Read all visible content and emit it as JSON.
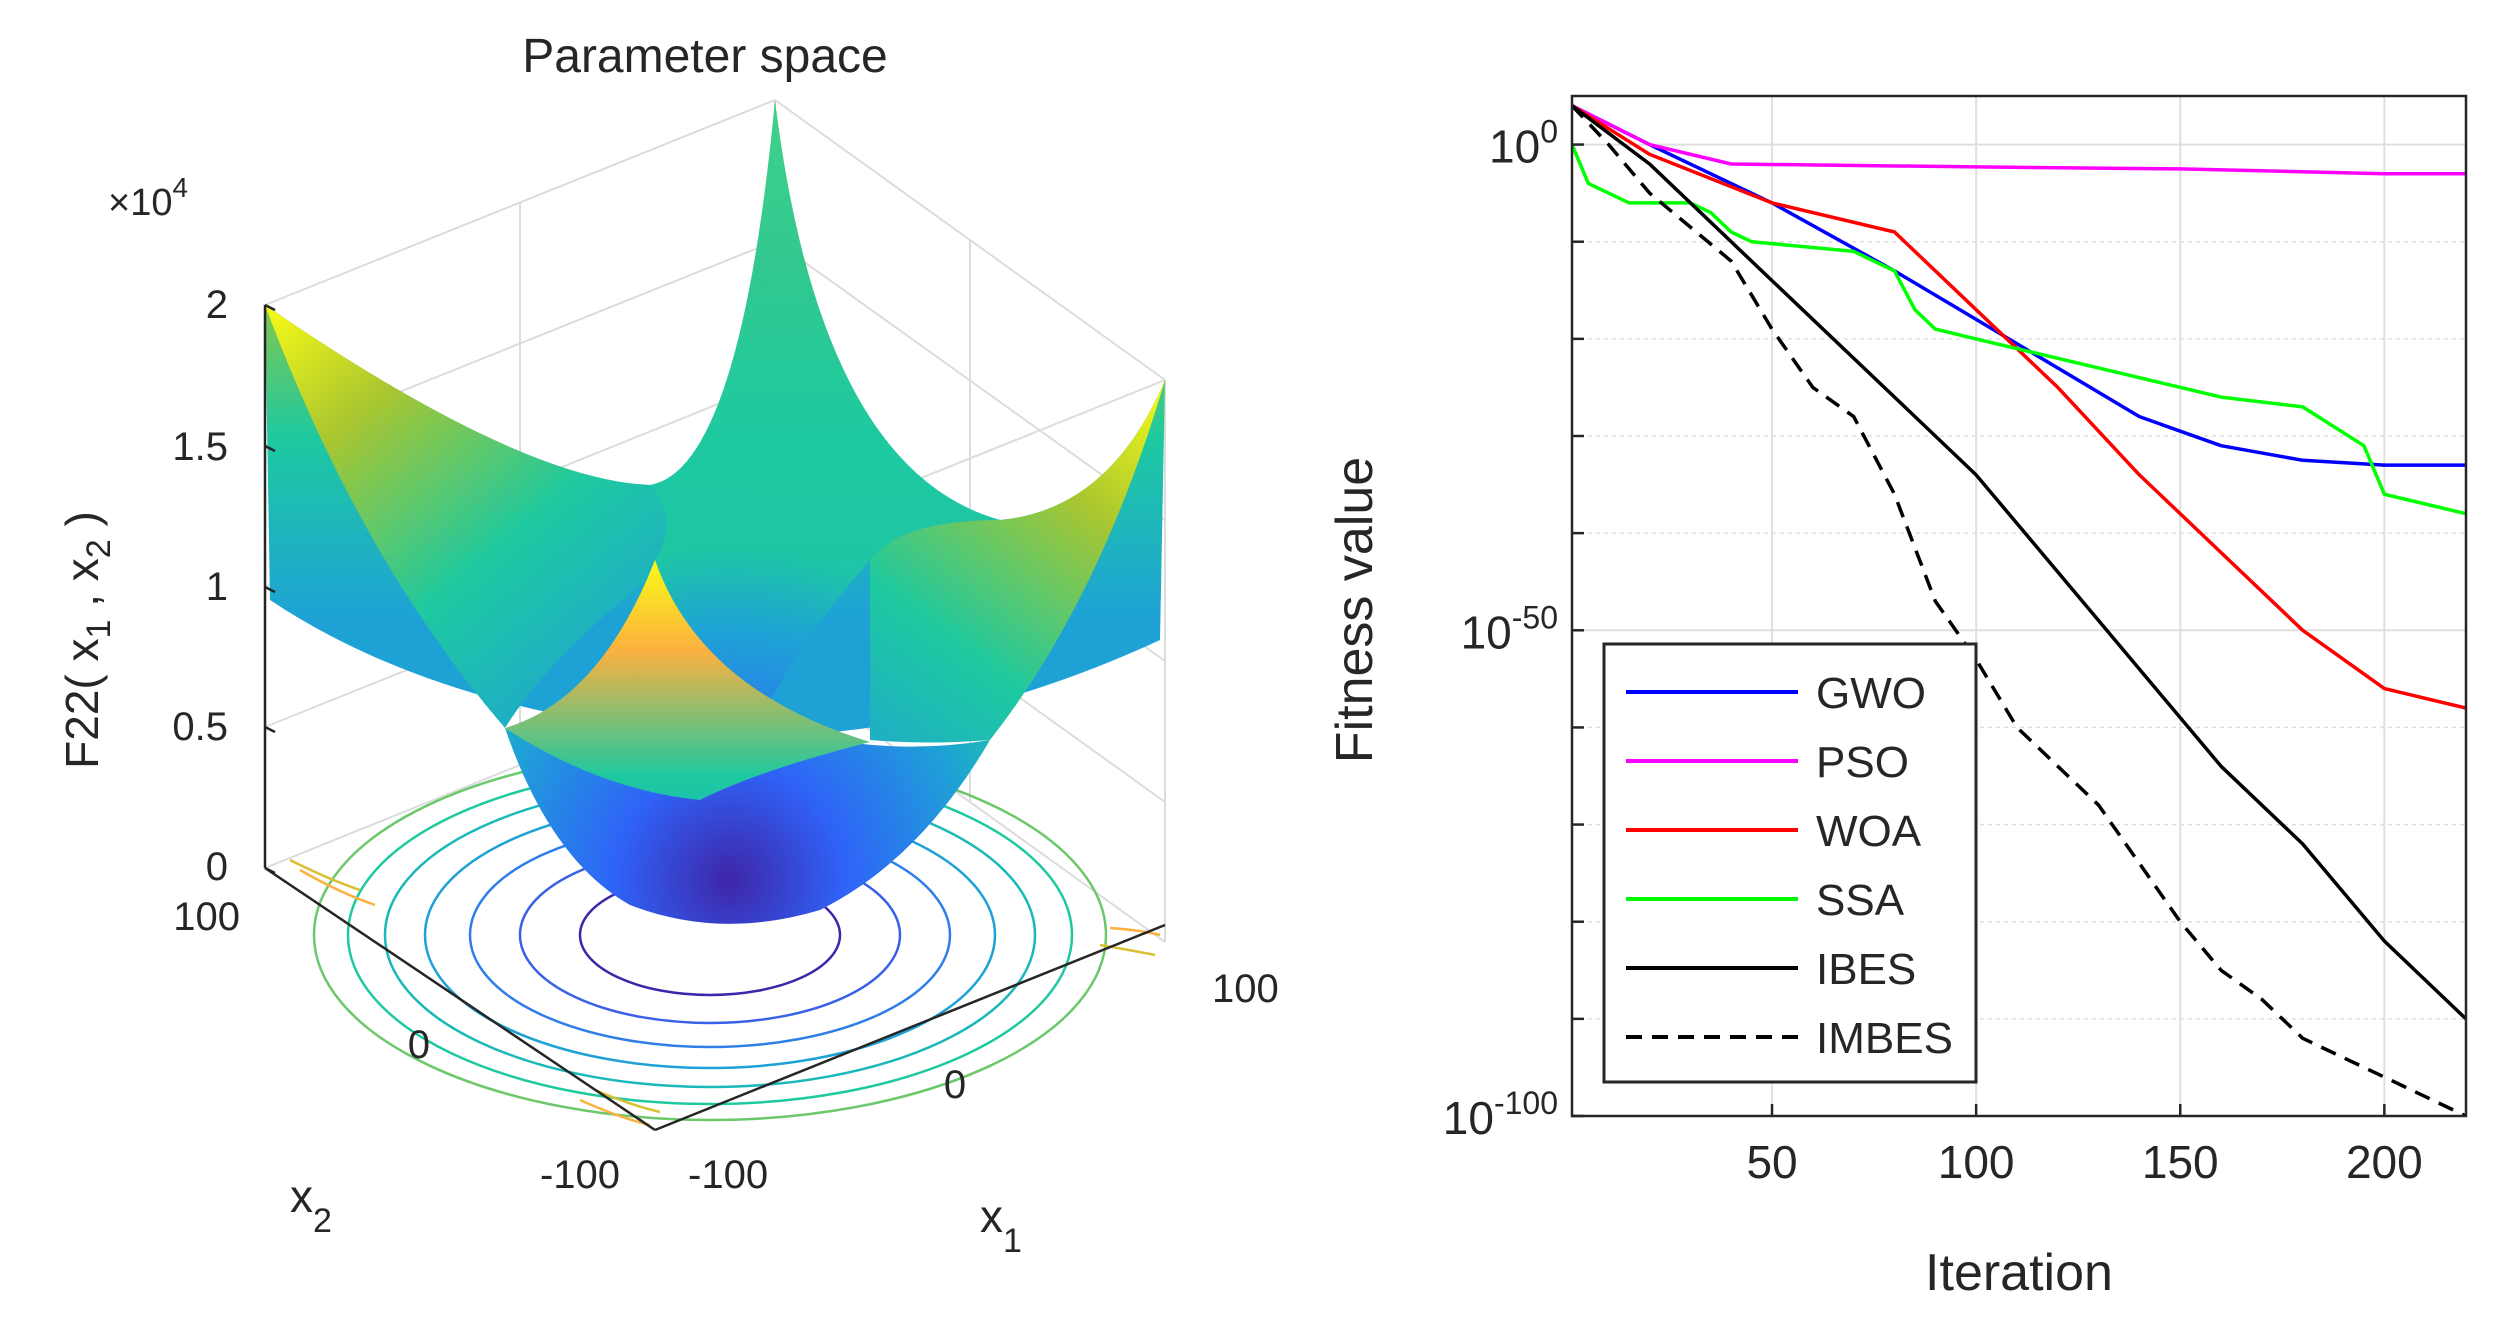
{
  "chart_data": [
    {
      "type": "surface",
      "title": "Parameter space",
      "zlabel_prefix": "F22( x",
      "zlabel_sub1": "1",
      "zlabel_mid": " , x",
      "zlabel_sub2": "2",
      "zlabel_suffix": " )",
      "xlabel": "x",
      "xlabel_sub": "1",
      "ylabel": "x",
      "ylabel_sub": "2",
      "multiplier_prefix": "×10",
      "multiplier_exp": "4",
      "z_ticks": [
        "0",
        "0.5",
        "1",
        "1.5",
        "2"
      ],
      "x_ticks": [
        "-100",
        "0",
        "100"
      ],
      "y_ticks": [
        "-100",
        "0",
        "100"
      ],
      "xlim": [
        -100,
        100
      ],
      "ylim": [
        -100,
        100
      ],
      "zlim": [
        0,
        20000
      ],
      "colormap": [
        "#3e26a8",
        "#2f63f8",
        "#1ea2d6",
        "#1ec9a0",
        "#a9c630",
        "#fcb13f",
        "#f9fb15"
      ]
    },
    {
      "type": "line",
      "y_scale": "log",
      "xlabel": "Iteration",
      "ylabel": "Fitness value",
      "xlim": [
        1,
        220
      ],
      "ylim_exponent": [
        -100,
        5
      ],
      "x_ticks": [
        "50",
        "100",
        "150",
        "200"
      ],
      "x_tick_values": [
        50,
        100,
        150,
        200
      ],
      "y_ticks": [
        {
          "base": "10",
          "exp": "0",
          "value": 0
        },
        {
          "base": "10",
          "exp": "-50",
          "value": -50
        },
        {
          "base": "10",
          "exp": "-100",
          "value": -100
        }
      ],
      "grid": true,
      "legend_position": "lower-left",
      "series": [
        {
          "name": "GWO",
          "color": "#0000ff",
          "dash": "",
          "x": [
            1,
            20,
            50,
            80,
            100,
            120,
            140,
            160,
            180,
            200,
            220
          ],
          "log10_y": [
            4,
            0,
            -6,
            -13,
            -18,
            -23,
            -28,
            -31,
            -32.5,
            -33,
            -33
          ]
        },
        {
          "name": "PSO",
          "color": "#ff00ff",
          "dash": "",
          "x": [
            1,
            20,
            40,
            100,
            150,
            200,
            220
          ],
          "log10_y": [
            4,
            0,
            -2,
            -2.3,
            -2.5,
            -3,
            -3
          ]
        },
        {
          "name": "WOA",
          "color": "#ff0000",
          "dash": "",
          "x": [
            1,
            20,
            50,
            80,
            100,
            120,
            140,
            160,
            180,
            200,
            220
          ],
          "log10_y": [
            4,
            -1,
            -6,
            -9,
            -17,
            -25,
            -34,
            -42,
            -50,
            -56,
            -58
          ]
        },
        {
          "name": "SSA",
          "color": "#00ff00",
          "dash": "",
          "x": [
            1,
            5,
            15,
            30,
            35,
            40,
            45,
            70,
            80,
            85,
            90,
            100,
            120,
            140,
            160,
            180,
            195,
            200,
            210,
            220
          ],
          "log10_y": [
            0,
            -4,
            -6,
            -6,
            -7,
            -9,
            -10,
            -11,
            -13,
            -17,
            -19,
            -20,
            -22,
            -24,
            -26,
            -27,
            -31,
            -36,
            -37,
            -38
          ]
        },
        {
          "name": "IBES",
          "color": "#000000",
          "dash": "",
          "x": [
            1,
            20,
            50,
            80,
            100,
            120,
            140,
            160,
            180,
            200,
            220
          ],
          "log10_y": [
            4,
            -2,
            -14,
            -26,
            -34,
            -44,
            -54,
            -64,
            -72,
            -82,
            -90
          ]
        },
        {
          "name": "IMBES",
          "color": "#000000",
          "dash": "16,10",
          "x": [
            1,
            10,
            20,
            40,
            50,
            60,
            70,
            80,
            90,
            100,
            110,
            120,
            130,
            135,
            140,
            150,
            160,
            170,
            180,
            190,
            200,
            210,
            220
          ],
          "log10_y": [
            4,
            0,
            -5,
            -12,
            -19,
            -25,
            -28,
            -36,
            -47,
            -53,
            -60,
            -64,
            -68,
            -71,
            -74,
            -80,
            -85,
            -88,
            -92,
            -94,
            -96,
            -98,
            -100
          ]
        }
      ]
    }
  ]
}
